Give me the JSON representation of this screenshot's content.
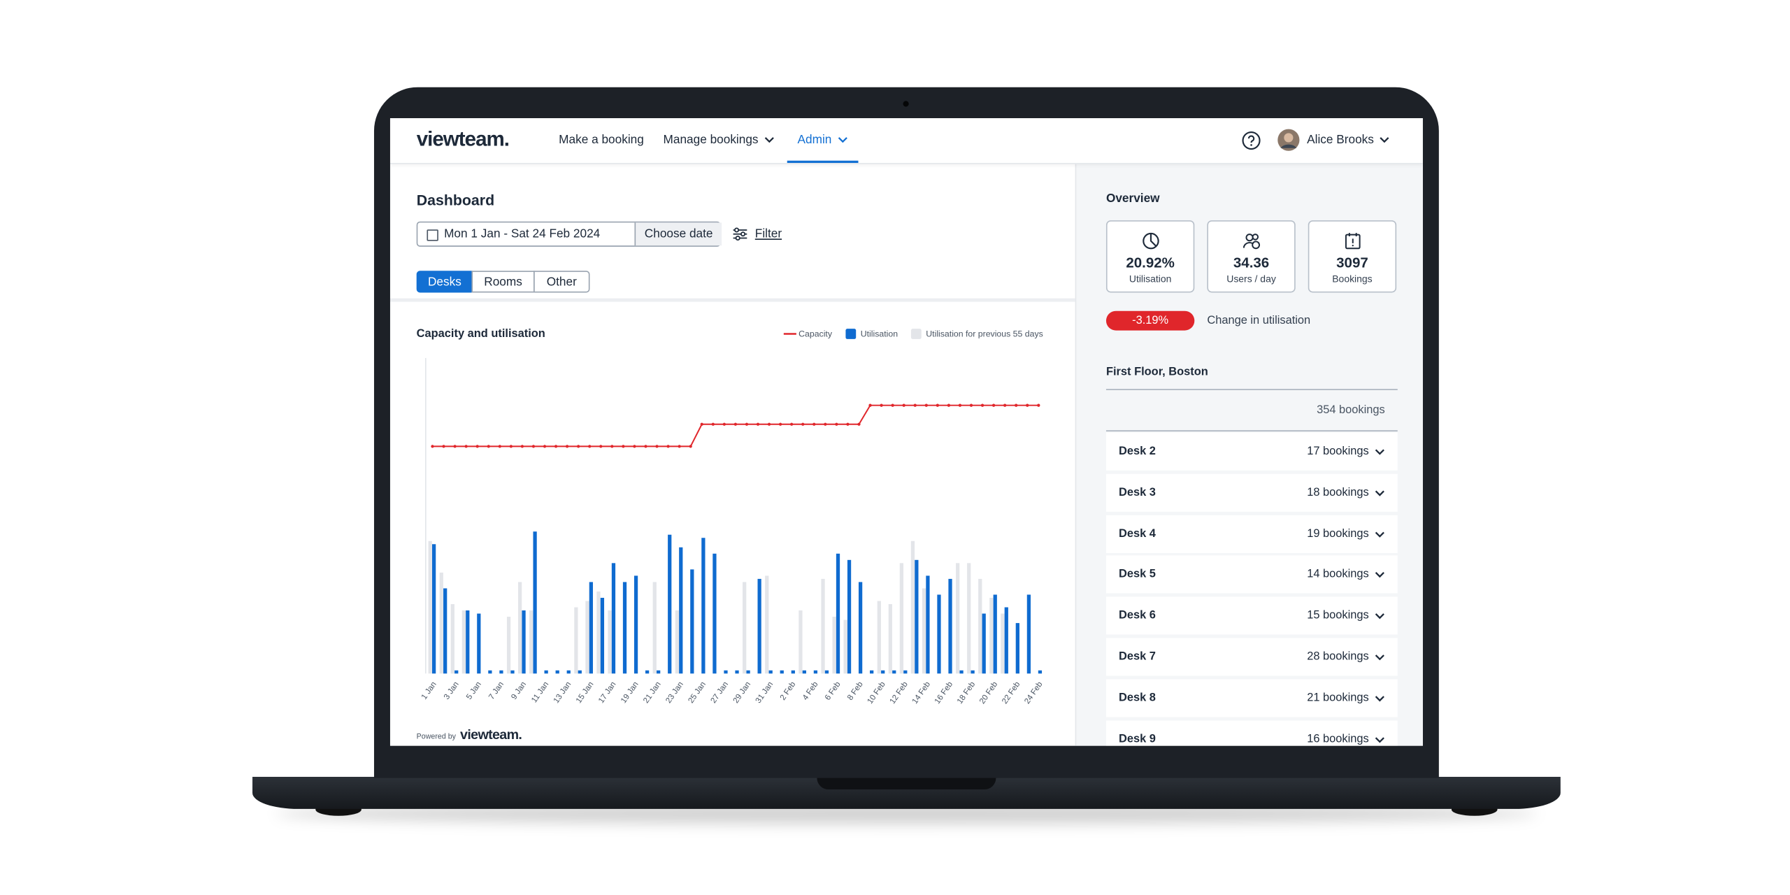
{
  "nav": {
    "logo": "viewteam.",
    "items": [
      "Make a booking",
      "Manage bookings",
      "Admin"
    ],
    "user": "Alice Brooks"
  },
  "dashboard": {
    "title": "Dashboard",
    "date_range": "Mon 1 Jan - Sat 24 Feb 2024",
    "choose_date": "Choose date",
    "filter": "Filter",
    "tabs": [
      "Desks",
      "Rooms",
      "Other"
    ]
  },
  "chart_data": {
    "type": "bar",
    "title": "Capacity and utilisation",
    "legend": "top-right",
    "categories": [
      "1 Jan",
      null,
      "3 Jan",
      null,
      "5 Jan",
      null,
      "7 Jan",
      null,
      "9 Jan",
      null,
      "11 Jan",
      null,
      "13 Jan",
      null,
      "15 Jan",
      null,
      "17 Jan",
      null,
      "19 Jan",
      null,
      "21 Jan",
      null,
      "23 Jan",
      null,
      "25 Jan",
      null,
      "27 Jan",
      null,
      "29 Jan",
      null,
      "31 Jan",
      null,
      "2 Feb",
      null,
      "4 Feb",
      null,
      "6 Feb",
      null,
      "8 Feb",
      null,
      "10 Feb",
      null,
      "12 Feb",
      null,
      "14 Feb",
      null,
      "16 Feb",
      null,
      "18 Feb",
      null,
      "20 Feb",
      null,
      "22 Feb",
      null,
      "24 Feb"
    ],
    "ylim": [
      0,
      100
    ],
    "series": [
      {
        "name": "Capacity",
        "color": "#e0262b",
        "type": "line",
        "values": [
          72,
          72,
          72,
          72,
          72,
          72,
          72,
          72,
          72,
          72,
          72,
          72,
          72,
          72,
          72,
          72,
          72,
          72,
          72,
          72,
          72,
          72,
          72,
          72,
          79,
          79,
          79,
          79,
          79,
          79,
          79,
          79,
          79,
          79,
          79,
          79,
          79,
          79,
          79,
          85,
          85,
          85,
          85,
          85,
          85,
          85,
          85,
          85,
          85,
          85,
          85,
          85,
          85,
          85,
          85
        ]
      },
      {
        "name": "Utilisation",
        "color": "#0f6bd0",
        "type": "bar",
        "values": [
          41,
          27,
          1,
          20,
          19,
          1,
          1,
          1,
          20,
          45,
          1,
          1,
          1,
          1,
          29,
          24,
          35,
          29,
          31,
          1,
          1,
          44,
          40,
          33,
          43,
          38,
          1,
          1,
          1,
          30,
          1,
          1,
          1,
          1,
          1,
          1,
          38,
          36,
          29,
          1,
          1,
          1,
          1,
          36,
          31,
          25,
          30,
          1,
          1,
          19,
          25,
          21,
          16,
          25,
          1
        ]
      },
      {
        "name": "Utilisation for previous 55 days",
        "color": "#e3e5e9",
        "type": "bar",
        "values": [
          42,
          32,
          22,
          20,
          0,
          0,
          0,
          18,
          29,
          20,
          0,
          0,
          0,
          21,
          23,
          26,
          20,
          0,
          0,
          0,
          29,
          0,
          20,
          0,
          0,
          0,
          0,
          0,
          29,
          0,
          31,
          0,
          0,
          20,
          0,
          30,
          18,
          17,
          0,
          0,
          23,
          22,
          35,
          42,
          27,
          0,
          0,
          35,
          35,
          30,
          24,
          19,
          0,
          0,
          0
        ]
      }
    ]
  },
  "footer": {
    "powered_by": "Powered by",
    "logo": "viewteam."
  },
  "overview": {
    "title": "Overview",
    "stats": [
      {
        "value": "20.92%",
        "label": "Utilisation"
      },
      {
        "value": "34.36",
        "label": "Users / day"
      },
      {
        "value": "3097",
        "label": "Bookings"
      }
    ],
    "change": {
      "value": "-3.19%",
      "label": "Change in utilisation"
    },
    "location": "First Floor, Boston",
    "total": "354 bookings",
    "desks": [
      {
        "name": "Desk 2",
        "bookings": "17 bookings"
      },
      {
        "name": "Desk 3",
        "bookings": "18 bookings"
      },
      {
        "name": "Desk 4",
        "bookings": "19 bookings"
      },
      {
        "name": "Desk 5",
        "bookings": "14 bookings"
      },
      {
        "name": "Desk 6",
        "bookings": "15 bookings"
      },
      {
        "name": "Desk 7",
        "bookings": "28 bookings"
      },
      {
        "name": "Desk 8",
        "bookings": "21 bookings"
      },
      {
        "name": "Desk 9",
        "bookings": "16 bookings"
      }
    ]
  }
}
